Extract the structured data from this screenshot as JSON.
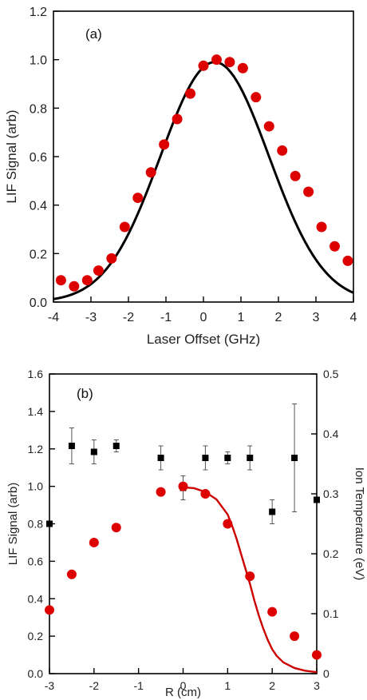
{
  "chart_data": [
    {
      "type": "scatter",
      "panel_label": "(a)",
      "xlabel": "Laser Offset (GHz)",
      "ylabel": "LIF Signal (arb)",
      "xlim": [
        -4,
        4
      ],
      "ylim": [
        0,
        1.2
      ],
      "xticks": [
        "-4",
        "-3",
        "-2",
        "-1",
        "0",
        "1",
        "2",
        "3",
        "4"
      ],
      "yticks": [
        "0.0",
        "0.2",
        "0.4",
        "0.6",
        "0.8",
        "1.0",
        "1.2"
      ],
      "grid": false,
      "colors": {
        "points": "#dd0000",
        "fit": "#000000"
      },
      "points": {
        "x": [
          -3.8,
          -3.45,
          -3.1,
          -2.8,
          -2.45,
          -2.1,
          -1.75,
          -1.4,
          -1.05,
          -0.7,
          -0.35,
          0.0,
          0.35,
          0.7,
          1.05,
          1.4,
          1.75,
          2.1,
          2.45,
          2.8,
          3.15,
          3.5,
          3.85
        ],
        "y": [
          0.09,
          0.065,
          0.09,
          0.13,
          0.18,
          0.31,
          0.43,
          0.535,
          0.65,
          0.755,
          0.86,
          0.975,
          1.0,
          0.99,
          0.965,
          0.845,
          0.725,
          0.625,
          0.52,
          0.455,
          0.31,
          0.23,
          0.17
        ]
      },
      "fit": {
        "shape": "gaussian",
        "amplitude": 0.99,
        "center": 0.3,
        "sigma": 1.45,
        "offset": 0.0
      }
    },
    {
      "type": "scatter",
      "panel_label": "(b)",
      "xlabel": "R (cm)",
      "ylabel": "LIF Signal (arb)",
      "y2label": "Ion Temperature (eV)",
      "xlim": [
        -3,
        3
      ],
      "ylim": [
        0,
        1.6
      ],
      "y2lim": [
        0,
        0.5
      ],
      "xticks": [
        "-3",
        "-2",
        "-1",
        "0",
        "1",
        "2",
        "3"
      ],
      "yticks": [
        "0.0",
        "0.2",
        "0.4",
        "0.6",
        "0.8",
        "1.0",
        "1.2",
        "1.4",
        "1.6"
      ],
      "y2ticks": [
        "0",
        "0.1",
        "0.2",
        "0.3",
        "0.4",
        "0.5"
      ],
      "grid": false,
      "colors": {
        "lif": "#dd0000",
        "temperature": "#000000",
        "fit": "#cc0000"
      },
      "lif_points": {
        "x": [
          -3.0,
          -2.5,
          -2.0,
          -1.5,
          -0.5,
          0.0,
          0.5,
          1.0,
          1.5,
          2.0,
          2.5,
          3.0
        ],
        "y": [
          0.34,
          0.53,
          0.7,
          0.78,
          0.97,
          1.0,
          0.96,
          0.8,
          0.52,
          0.33,
          0.2,
          0.1
        ]
      },
      "temperature_points": {
        "x": [
          -3.0,
          -2.5,
          -2.0,
          -1.5,
          -0.5,
          0.0,
          0.5,
          1.0,
          1.5,
          2.0,
          2.5,
          3.0
        ],
        "y": [
          0.25,
          0.38,
          0.37,
          0.38,
          0.36,
          0.31,
          0.36,
          0.36,
          0.36,
          0.27,
          0.36,
          0.29
        ],
        "err": [
          0.0,
          0.03,
          0.02,
          0.01,
          0.02,
          0.02,
          0.02,
          0.01,
          0.02,
          0.02,
          0.09,
          0.0
        ]
      },
      "fit": {
        "x": [
          0.0,
          0.25,
          0.5,
          0.75,
          1.0,
          1.1,
          1.2,
          1.3,
          1.4,
          1.5,
          1.6,
          1.7,
          1.8,
          1.9,
          2.0,
          2.1,
          2.25,
          2.5,
          2.75,
          3.0
        ],
        "y": [
          0.995,
          0.99,
          0.97,
          0.93,
          0.85,
          0.79,
          0.72,
          0.64,
          0.56,
          0.48,
          0.39,
          0.31,
          0.24,
          0.18,
          0.13,
          0.095,
          0.06,
          0.03,
          0.015,
          0.008
        ]
      }
    }
  ]
}
